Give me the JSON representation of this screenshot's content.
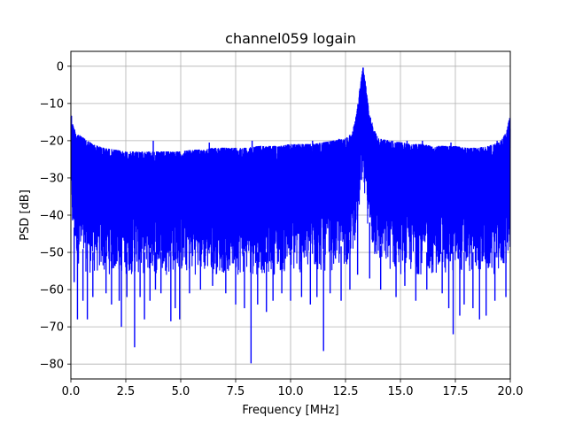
{
  "chart_data": {
    "type": "line",
    "title": "channel059 logain",
    "xlabel": "Frequency [MHz]",
    "ylabel": "PSD [dB]",
    "xlim": [
      0,
      20
    ],
    "ylim": [
      -84,
      4
    ],
    "xticks": [
      0,
      2.5,
      5,
      7.5,
      10,
      12.5,
      15,
      17.5,
      20
    ],
    "xtick_labels": [
      "0.0",
      "2.5",
      "5.0",
      "7.5",
      "10.0",
      "12.5",
      "15.0",
      "17.5",
      "20.0"
    ],
    "yticks": [
      0,
      -10,
      -20,
      -30,
      -40,
      -50,
      -60,
      -70,
      -80
    ],
    "ytick_labels": [
      "0",
      "−10",
      "−20",
      "−30",
      "−40",
      "−50",
      "−60",
      "−70",
      "−80"
    ],
    "grid": true,
    "series": [
      {
        "color": "#0000ff",
        "x": [
          0.0,
          0.1,
          0.25,
          0.5,
          1.0,
          1.5,
          2.0,
          2.5,
          3.0,
          3.5,
          4.0,
          4.5,
          5.0,
          5.5,
          6.0,
          6.5,
          7.0,
          7.5,
          8.0,
          8.5,
          9.0,
          9.5,
          10.0,
          10.5,
          11.0,
          11.5,
          12.0,
          12.5,
          12.8,
          13.0,
          13.1,
          13.2,
          13.3,
          13.4,
          13.5,
          13.6,
          13.8,
          14.0,
          14.5,
          15.0,
          15.5,
          16.0,
          16.5,
          17.0,
          17.5,
          18.0,
          18.5,
          19.0,
          19.5,
          19.8,
          20.0
        ],
        "upper": [
          -12,
          -16,
          -18,
          -19,
          -21,
          -22,
          -22.5,
          -23,
          -23,
          -23,
          -23,
          -23,
          -23,
          -22.5,
          -22.5,
          -22,
          -22,
          -22,
          -22,
          -21.5,
          -21.5,
          -21.5,
          -21,
          -21,
          -21,
          -20.5,
          -20,
          -19.5,
          -18,
          -13,
          -8,
          -4,
          0,
          -4,
          -9,
          -13,
          -17,
          -19.5,
          -20,
          -20.5,
          -21,
          -21,
          -21.5,
          -21.5,
          -21.5,
          -22,
          -22,
          -21.5,
          -20.5,
          -18,
          -13
        ],
        "lower": [
          -40,
          -48,
          -52,
          -55,
          -56,
          -56,
          -56,
          -56,
          -56,
          -56,
          -56,
          -56,
          -56,
          -56,
          -56,
          -56,
          -56,
          -56,
          -56,
          -56,
          -56,
          -56,
          -56,
          -56,
          -56,
          -55.5,
          -55,
          -54,
          -52,
          -44,
          -40,
          -38,
          -37,
          -38,
          -42,
          -48,
          -52,
          -54,
          -55,
          -56,
          -56,
          -56,
          -56,
          -56,
          -56,
          -56,
          -56,
          -56,
          -56,
          -54,
          -50
        ],
        "dips": [
          {
            "x": 0.15,
            "y": -58
          },
          {
            "x": 0.3,
            "y": -68
          },
          {
            "x": 0.55,
            "y": -63
          },
          {
            "x": 0.75,
            "y": -68
          },
          {
            "x": 1.0,
            "y": -62
          },
          {
            "x": 1.6,
            "y": -61
          },
          {
            "x": 1.85,
            "y": -64
          },
          {
            "x": 2.2,
            "y": -63
          },
          {
            "x": 2.3,
            "y": -70
          },
          {
            "x": 2.55,
            "y": -62
          },
          {
            "x": 2.9,
            "y": -75.5
          },
          {
            "x": 3.15,
            "y": -62
          },
          {
            "x": 3.35,
            "y": -68
          },
          {
            "x": 3.6,
            "y": -63
          },
          {
            "x": 3.85,
            "y": -60
          },
          {
            "x": 4.1,
            "y": -61
          },
          {
            "x": 4.55,
            "y": -68.5
          },
          {
            "x": 4.75,
            "y": -65
          },
          {
            "x": 4.95,
            "y": -68
          },
          {
            "x": 5.4,
            "y": -61
          },
          {
            "x": 5.9,
            "y": -60
          },
          {
            "x": 6.45,
            "y": -59
          },
          {
            "x": 7.05,
            "y": -61
          },
          {
            "x": 7.5,
            "y": -64
          },
          {
            "x": 7.9,
            "y": -65
          },
          {
            "x": 8.2,
            "y": -79.8
          },
          {
            "x": 8.5,
            "y": -64
          },
          {
            "x": 8.9,
            "y": -66
          },
          {
            "x": 9.2,
            "y": -63
          },
          {
            "x": 9.6,
            "y": -61
          },
          {
            "x": 10.0,
            "y": -63
          },
          {
            "x": 10.5,
            "y": -62
          },
          {
            "x": 10.9,
            "y": -64
          },
          {
            "x": 11.2,
            "y": -62
          },
          {
            "x": 11.5,
            "y": -76.5
          },
          {
            "x": 11.8,
            "y": -61
          },
          {
            "x": 12.3,
            "y": -63
          },
          {
            "x": 12.7,
            "y": -60
          },
          {
            "x": 13.05,
            "y": -56
          },
          {
            "x": 13.6,
            "y": -57
          },
          {
            "x": 14.1,
            "y": -60
          },
          {
            "x": 14.8,
            "y": -62
          },
          {
            "x": 15.2,
            "y": -59
          },
          {
            "x": 15.7,
            "y": -63
          },
          {
            "x": 16.2,
            "y": -60
          },
          {
            "x": 16.9,
            "y": -61
          },
          {
            "x": 17.2,
            "y": -65
          },
          {
            "x": 17.4,
            "y": -72
          },
          {
            "x": 17.7,
            "y": -67
          },
          {
            "x": 17.9,
            "y": -64
          },
          {
            "x": 18.3,
            "y": -65
          },
          {
            "x": 18.6,
            "y": -68
          },
          {
            "x": 18.9,
            "y": -67
          },
          {
            "x": 19.3,
            "y": -63
          },
          {
            "x": 19.8,
            "y": -62
          }
        ],
        "spikes": [
          {
            "x": 3.75,
            "y": -20
          },
          {
            "x": 6.3,
            "y": -20.5
          },
          {
            "x": 8.25,
            "y": -20
          },
          {
            "x": 11.0,
            "y": -20
          },
          {
            "x": 12.2,
            "y": -19.5
          },
          {
            "x": 15.3,
            "y": -20
          },
          {
            "x": 16.0,
            "y": -20
          },
          {
            "x": 17.3,
            "y": -20.5
          },
          {
            "x": 19.4,
            "y": -20
          }
        ]
      }
    ]
  }
}
